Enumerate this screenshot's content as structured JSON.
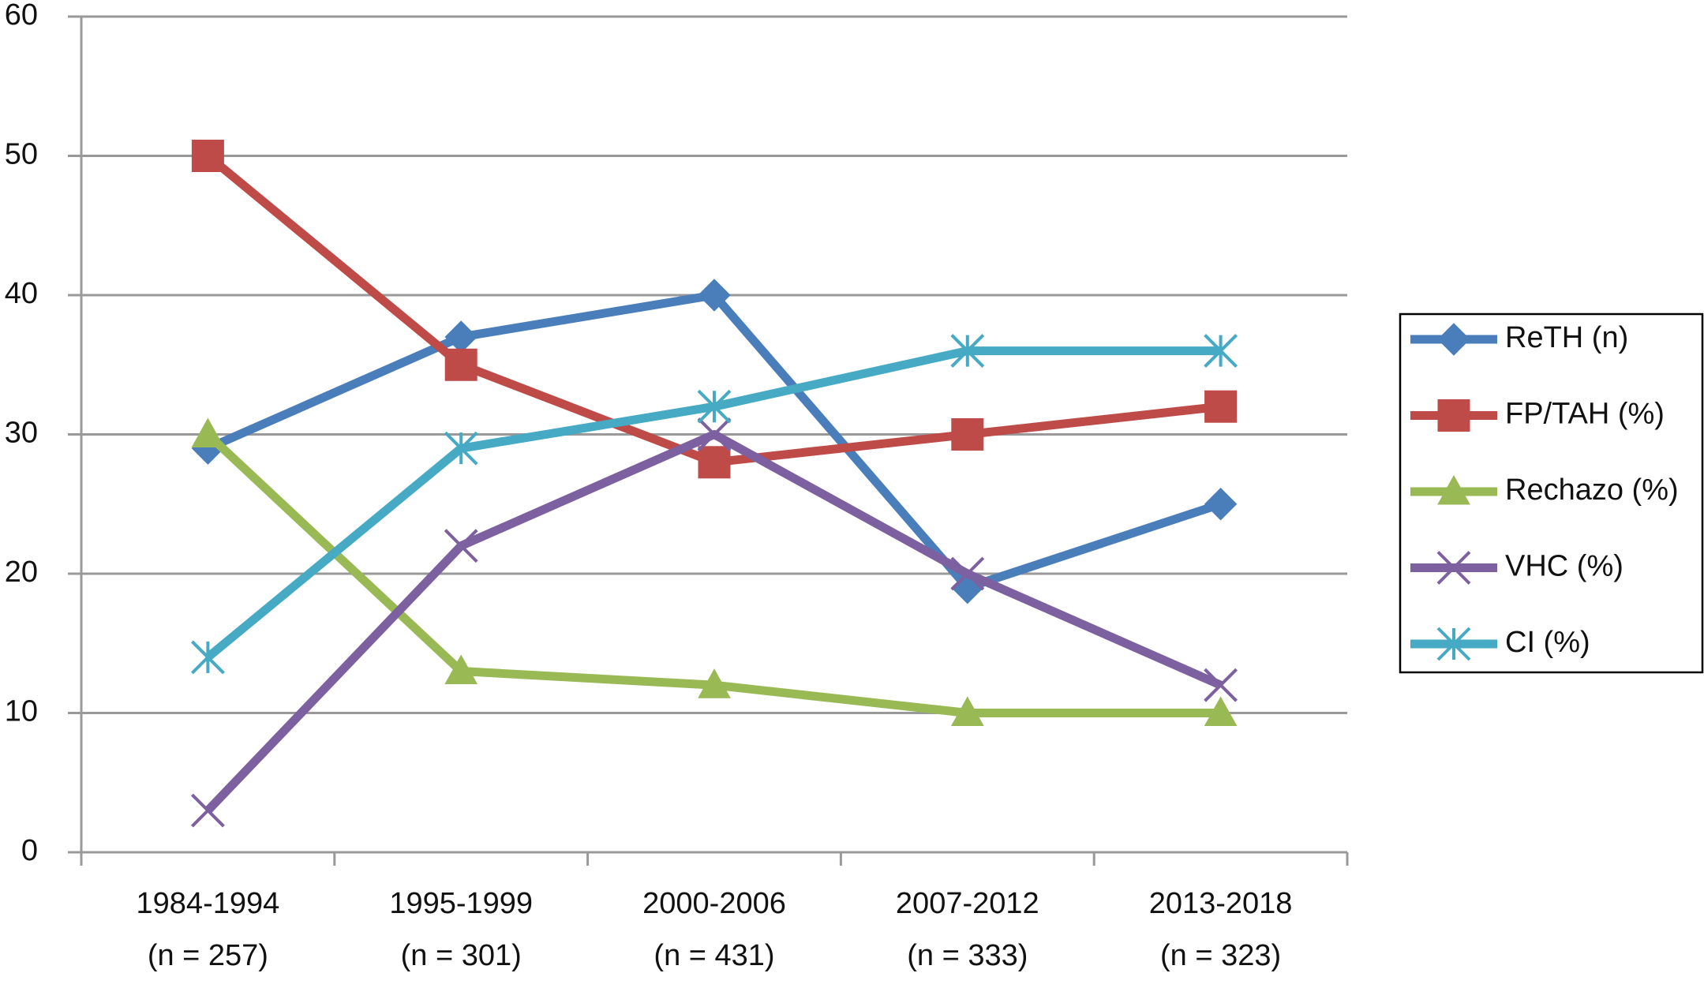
{
  "chart_data": {
    "type": "line",
    "categories": [
      [
        "1984-1994",
        "(n = 257)"
      ],
      [
        "1995-1999",
        "(n = 301)"
      ],
      [
        "2000-2006",
        "(n = 431)"
      ],
      [
        "2007-2012",
        "(n = 333)"
      ],
      [
        "2013-2018",
        "(n = 323)"
      ]
    ],
    "series": [
      {
        "name": "ReTH (n)",
        "color": "#4a7ebb",
        "marker": "diamond",
        "values": [
          29,
          37,
          40,
          19,
          25
        ]
      },
      {
        "name": "FP/TAH (%)",
        "color": "#be4b48",
        "marker": "square",
        "values": [
          50,
          35,
          28,
          30,
          32
        ]
      },
      {
        "name": "Rechazo (%)",
        "color": "#98b954",
        "marker": "triangle",
        "values": [
          30,
          13,
          12,
          10,
          10
        ]
      },
      {
        "name": "VHC (%)",
        "color": "#7d60a0",
        "marker": "x",
        "values": [
          3,
          22,
          30,
          20,
          12
        ]
      },
      {
        "name": "CI (%)",
        "color": "#46aac5",
        "marker": "asterisk",
        "values": [
          14,
          29,
          32,
          36,
          36
        ]
      }
    ],
    "ylim": [
      0,
      60
    ],
    "yticks": [
      0,
      10,
      20,
      30,
      40,
      50,
      60
    ],
    "grid": true,
    "legend": "right"
  }
}
